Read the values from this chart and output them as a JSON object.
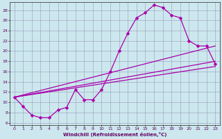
{
  "xlabel": "Windchill (Refroidissement éolien,°C)",
  "bg_color": "#cce8ee",
  "line_color": "#aa00aa",
  "xlim": [
    -0.5,
    23.5
  ],
  "ylim": [
    5.5,
    29.5
  ],
  "yticks": [
    6,
    8,
    10,
    12,
    14,
    16,
    18,
    20,
    22,
    24,
    26,
    28
  ],
  "xticks": [
    0,
    1,
    2,
    3,
    4,
    5,
    6,
    7,
    8,
    9,
    10,
    11,
    12,
    13,
    14,
    15,
    16,
    17,
    18,
    19,
    20,
    21,
    22,
    23
  ],
  "curve_x": [
    0,
    1,
    2,
    3,
    4,
    5,
    6,
    7,
    8,
    9,
    10,
    11,
    12,
    13,
    14,
    15,
    16,
    17,
    18,
    19,
    20,
    21,
    22,
    23
  ],
  "curve_y": [
    11.0,
    9.2,
    7.5,
    7.0,
    7.0,
    8.5,
    9.0,
    12.5,
    10.5,
    10.5,
    12.5,
    16.0,
    20.0,
    23.5,
    26.5,
    27.5,
    29.0,
    28.5,
    27.0,
    26.5,
    22.0,
    21.0,
    21.0,
    17.5
  ],
  "line1_x": [
    0,
    23
  ],
  "line1_y": [
    11.0,
    21.0
  ],
  "line2_x": [
    0,
    23
  ],
  "line2_y": [
    11.0,
    18.0
  ],
  "line3_x": [
    0,
    23
  ],
  "line3_y": [
    11.0,
    17.0
  ],
  "markersize": 2.5,
  "linewidth": 0.9
}
